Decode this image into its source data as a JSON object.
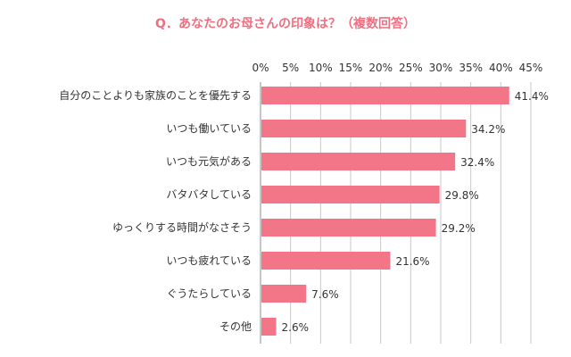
{
  "chart_data": {
    "type": "bar",
    "orientation": "horizontal",
    "title": "Q．あなたのお母さんの印象は？（複数回答）",
    "categories": [
      "自分のことよりも家族のことを優先する",
      "いつも働いている",
      "いつも元気がある",
      "バタバタしている",
      "ゆっくりする時間がなさそう",
      "いつも疲れている",
      "ぐうたらしている",
      "その他"
    ],
    "values": [
      41.4,
      34.2,
      32.4,
      29.8,
      29.2,
      21.6,
      7.6,
      2.6
    ],
    "value_labels": [
      "41.4%",
      "34.2%",
      "32.4%",
      "29.8%",
      "29.2%",
      "21.6%",
      "7.6%",
      "2.6%"
    ],
    "xlim": [
      0,
      45
    ],
    "x_ticks": [
      0,
      5,
      10,
      15,
      20,
      25,
      30,
      35,
      40,
      45
    ],
    "x_tick_labels": [
      "0%",
      "5%",
      "10%",
      "15%",
      "20%",
      "25%",
      "30%",
      "35%",
      "40%",
      "45%"
    ],
    "tick_position": "top",
    "grid": true,
    "bar_color": "#f27688",
    "title_color": "#ef6f80"
  }
}
